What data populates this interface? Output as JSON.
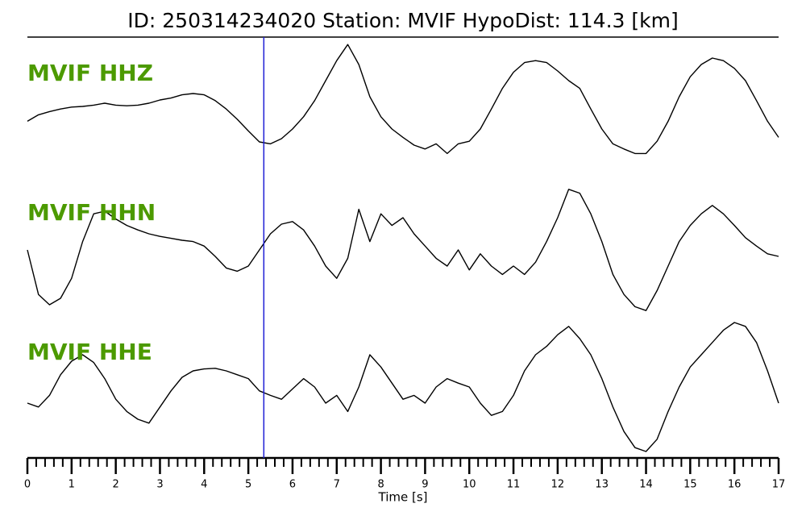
{
  "chart_data": {
    "type": "line",
    "title": "ID: 250314234020   Station: MVIF   HypoDist:   114.3 [km]",
    "xlabel": "Time [s]",
    "label_color": "#4c9a00",
    "marker": {
      "x": 5.35,
      "color": "#1f1fd6"
    },
    "x": [
      0,
      0.25,
      0.5,
      0.75,
      1,
      1.25,
      1.5,
      1.75,
      2,
      2.25,
      2.5,
      2.75,
      3,
      3.25,
      3.5,
      3.75,
      4,
      4.25,
      4.5,
      4.75,
      5,
      5.25,
      5.5,
      5.75,
      6,
      6.25,
      6.5,
      6.75,
      7,
      7.25,
      7.5,
      7.75,
      8,
      8.25,
      8.5,
      8.75,
      9,
      9.25,
      9.5,
      9.75,
      10,
      10.25,
      10.5,
      10.75,
      11,
      11.25,
      11.5,
      11.75,
      12,
      12.25,
      12.5,
      12.75,
      13,
      13.25,
      13.5,
      13.75,
      14,
      14.25,
      14.5,
      14.75,
      15,
      15.25,
      15.5,
      15.75,
      16,
      16.25,
      16.5,
      16.75,
      17
    ],
    "series": [
      {
        "name": "MVIF HHZ",
        "color": "#000000",
        "values": [
          -0.33,
          -0.23,
          -0.18,
          -0.14,
          -0.11,
          -0.1,
          -0.08,
          -0.05,
          -0.08,
          -0.09,
          -0.08,
          -0.05,
          0,
          0.03,
          0.08,
          0.1,
          0.08,
          -0.01,
          -0.14,
          -0.3,
          -0.48,
          -0.65,
          -0.68,
          -0.6,
          -0.45,
          -0.26,
          -0.01,
          0.3,
          0.61,
          0.86,
          0.55,
          0.05,
          -0.26,
          -0.45,
          -0.58,
          -0.7,
          -0.76,
          -0.68,
          -0.83,
          -0.68,
          -0.64,
          -0.45,
          -0.14,
          0.18,
          0.43,
          0.58,
          0.61,
          0.58,
          0.45,
          0.3,
          0.18,
          -0.14,
          -0.45,
          -0.68,
          -0.76,
          -0.83,
          -0.83,
          -0.64,
          -0.33,
          0.05,
          0.36,
          0.55,
          0.65,
          0.61,
          0.49,
          0.3,
          -0.01,
          -0.33,
          -0.58
        ]
      },
      {
        "name": "MVIF HHN",
        "color": "#000000",
        "values": [
          -0.05,
          -0.74,
          -0.9,
          -0.8,
          -0.49,
          0.08,
          0.51,
          0.55,
          0.43,
          0.33,
          0.26,
          0.2,
          0.16,
          0.13,
          0.1,
          0.08,
          0.01,
          -0.15,
          -0.33,
          -0.38,
          -0.3,
          -0.05,
          0.2,
          0.35,
          0.39,
          0.26,
          0.01,
          -0.3,
          -0.49,
          -0.18,
          0.58,
          0.08,
          0.51,
          0.33,
          0.45,
          0.2,
          0.01,
          -0.18,
          -0.3,
          -0.05,
          -0.36,
          -0.11,
          -0.3,
          -0.43,
          -0.3,
          -0.43,
          -0.24,
          0.08,
          0.45,
          0.89,
          0.83,
          0.51,
          0.08,
          -0.43,
          -0.74,
          -0.93,
          -0.99,
          -0.68,
          -0.3,
          0.08,
          0.33,
          0.51,
          0.64,
          0.51,
          0.33,
          0.14,
          0.01,
          -0.11,
          -0.15
        ]
      },
      {
        "name": "MVIF HHE",
        "color": "#000000",
        "values": [
          -0.25,
          -0.31,
          -0.13,
          0.19,
          0.4,
          0.5,
          0.38,
          0.13,
          -0.19,
          -0.38,
          -0.5,
          -0.56,
          -0.31,
          -0.06,
          0.15,
          0.25,
          0.28,
          0.29,
          0.25,
          0.19,
          0.13,
          -0.06,
          -0.13,
          -0.19,
          -0.03,
          0.13,
          0,
          -0.25,
          -0.13,
          -0.38,
          0,
          0.5,
          0.31,
          0.06,
          -0.19,
          -0.13,
          -0.25,
          0,
          0.13,
          0.06,
          0,
          -0.25,
          -0.44,
          -0.38,
          -0.13,
          0.25,
          0.5,
          0.63,
          0.81,
          0.94,
          0.75,
          0.5,
          0.13,
          -0.31,
          -0.69,
          -0.94,
          -1.0,
          -0.81,
          -0.38,
          0,
          0.31,
          0.5,
          0.69,
          0.88,
          1.0,
          0.94,
          0.69,
          0.25,
          -0.25
        ]
      }
    ],
    "xlim": [
      0,
      17
    ],
    "ylim": [
      -1,
      1
    ],
    "xticks": [
      0,
      1,
      2,
      3,
      4,
      5,
      6,
      7,
      8,
      9,
      10,
      11,
      12,
      13,
      14,
      15,
      16,
      17
    ],
    "xminorticks": [
      0.2,
      0.4,
      0.6,
      0.8,
      1.2,
      1.4,
      1.6,
      1.8,
      2.2,
      2.4,
      2.6,
      2.8,
      3.2,
      3.4,
      3.6,
      3.8,
      4.2,
      4.4,
      4.6,
      4.8,
      5.2,
      5.4,
      5.6,
      5.8,
      6.2,
      6.4,
      6.6,
      6.8,
      7.2,
      7.4,
      7.6,
      7.8,
      8.2,
      8.4,
      8.6,
      8.8,
      9.2,
      9.4,
      9.6,
      9.8,
      10.2,
      10.4,
      10.6,
      10.8,
      11.2,
      11.4,
      11.6,
      11.8,
      12.2,
      12.4,
      12.6,
      12.8,
      13.2,
      13.4,
      13.6,
      13.8,
      14.2,
      14.4,
      14.6,
      14.8,
      15.2,
      15.4,
      15.6,
      15.8,
      16.2,
      16.4,
      16.6,
      16.8
    ]
  }
}
